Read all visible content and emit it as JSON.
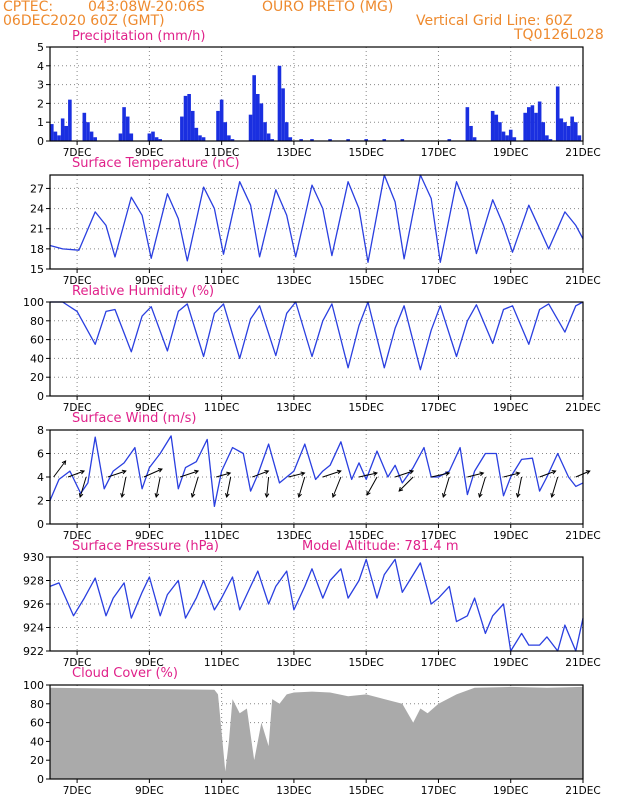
{
  "header": {
    "source": "CPTEC:",
    "coords": "043:08W-20:06S",
    "location": "OURO PRETO (MG)",
    "run": "06DEC2020 60Z (GMT)",
    "grid_note": "Vertical Grid Line: 60Z",
    "code": "TQ0126L028"
  },
  "colors": {
    "line": "#2a3fe0",
    "bar": "#1a2fe0",
    "title": "#e0218a",
    "header": "#ee8a2e",
    "cloud": "#aaaaaa",
    "wind_arrow": "#000000"
  },
  "x_axis": {
    "day_ticks": [
      7,
      9,
      11,
      13,
      15,
      17,
      19,
      21
    ],
    "day_labels": [
      "7DEC",
      "9DEC",
      "11DEC",
      "13DEC",
      "15DEC",
      "17DEC",
      "19DEC",
      "21DEC"
    ],
    "range_days": [
      6.25,
      21.0
    ]
  },
  "chart_data": [
    {
      "type": "bar",
      "title": "Precipitation (mm/h)",
      "ylim": [
        0,
        5
      ],
      "yticks": [
        0,
        1,
        2,
        3,
        4,
        5
      ],
      "series": [
        {
          "x": [
            6.3,
            6.4,
            6.5,
            6.6,
            6.7,
            6.8,
            7.2,
            7.3,
            7.4,
            7.5,
            8.2,
            8.3,
            8.4,
            8.5,
            9.0,
            9.1,
            9.2,
            9.3,
            9.9,
            10.0,
            10.1,
            10.2,
            10.3,
            10.4,
            10.5,
            10.9,
            11.0,
            11.1,
            11.2,
            11.3,
            11.8,
            11.9,
            12.0,
            12.1,
            12.2,
            12.3,
            12.4,
            12.6,
            12.7,
            12.8,
            12.9,
            13.2,
            13.5,
            14.0,
            14.5,
            15.0,
            15.5,
            16.0,
            17.3,
            17.8,
            17.9,
            18.0,
            18.5,
            18.6,
            18.7,
            18.8,
            18.9,
            19.0,
            19.1,
            19.4,
            19.5,
            19.6,
            19.7,
            19.8,
            19.9,
            20.0,
            20.1,
            20.3,
            20.4,
            20.5,
            20.6,
            20.7,
            20.8,
            20.9
          ],
          "values": [
            0.9,
            0.5,
            0.3,
            1.2,
            0.8,
            2.2,
            1.5,
            1.0,
            0.5,
            0.2,
            0.4,
            1.8,
            1.3,
            0.4,
            0.4,
            0.5,
            0.2,
            0.1,
            1.3,
            2.4,
            2.5,
            1.6,
            0.7,
            0.3,
            0.2,
            1.6,
            2.2,
            1.0,
            0.3,
            0.1,
            1.4,
            3.5,
            2.5,
            2.0,
            1.0,
            0.4,
            0.1,
            4.0,
            2.8,
            1.0,
            0.2,
            0.1,
            0.1,
            0.1,
            0.1,
            0.1,
            0.1,
            0.1,
            0.1,
            1.8,
            0.8,
            0.2,
            1.6,
            1.4,
            1.0,
            0.5,
            0.3,
            0.6,
            0.2,
            1.5,
            1.8,
            1.9,
            1.5,
            2.1,
            1.0,
            0.3,
            0.1,
            2.9,
            1.2,
            1.0,
            0.8,
            1.3,
            1.0,
            0.3
          ]
        }
      ],
      "xlabel": "",
      "ylabel": "",
      "grid": true
    },
    {
      "type": "line",
      "title": "Surface Temperature (nC)",
      "ylim": [
        15,
        29
      ],
      "yticks": [
        15,
        18,
        21,
        24,
        27
      ],
      "series": [
        {
          "x": [
            6.25,
            6.6,
            7.05,
            7.5,
            7.8,
            8.05,
            8.5,
            8.8,
            9.05,
            9.5,
            9.8,
            10.05,
            10.5,
            10.8,
            11.05,
            11.5,
            11.8,
            12.05,
            12.5,
            12.8,
            13.05,
            13.5,
            13.8,
            14.05,
            14.5,
            14.8,
            15.05,
            15.5,
            15.8,
            16.05,
            16.5,
            16.8,
            17.05,
            17.5,
            17.8,
            18.05,
            18.5,
            18.8,
            19.05,
            19.5,
            19.8,
            20.05,
            20.5,
            20.8,
            21.0
          ],
          "values": [
            18.5,
            18.0,
            17.8,
            23.5,
            21.5,
            16.8,
            25.7,
            23.0,
            16.6,
            26.2,
            22.5,
            16.2,
            27.2,
            24.0,
            17.2,
            28.0,
            24.5,
            16.8,
            26.8,
            23.0,
            16.8,
            27.5,
            24.0,
            17.0,
            28.0,
            24.0,
            16.0,
            29.0,
            25.0,
            16.5,
            29.0,
            25.5,
            16.0,
            28.0,
            24.0,
            17.3,
            25.3,
            21.5,
            17.5,
            24.5,
            21.0,
            18.0,
            23.5,
            21.5,
            19.5
          ]
        }
      ],
      "xlabel": "",
      "ylabel": "",
      "grid": true
    },
    {
      "type": "line",
      "title": "Relative Humidity (%)",
      "ylim": [
        0,
        100
      ],
      "yticks": [
        0,
        20,
        40,
        60,
        80,
        100
      ],
      "series": [
        {
          "x": [
            6.25,
            6.6,
            7.0,
            7.5,
            7.8,
            8.05,
            8.5,
            8.8,
            9.05,
            9.5,
            9.8,
            10.05,
            10.5,
            10.8,
            11.05,
            11.5,
            11.8,
            12.05,
            12.5,
            12.8,
            13.05,
            13.5,
            13.8,
            14.05,
            14.5,
            14.8,
            15.05,
            15.5,
            15.8,
            16.05,
            16.5,
            16.8,
            17.05,
            17.5,
            17.8,
            18.05,
            18.5,
            18.8,
            19.05,
            19.5,
            19.8,
            20.05,
            20.5,
            20.8,
            21.0
          ],
          "values": [
            100,
            100,
            90,
            55,
            90,
            92,
            47,
            85,
            95,
            48,
            90,
            98,
            42,
            88,
            98,
            40,
            82,
            96,
            43,
            88,
            100,
            42,
            80,
            98,
            30,
            75,
            100,
            30,
            72,
            96,
            28,
            70,
            96,
            42,
            80,
            97,
            56,
            92,
            96,
            55,
            92,
            98,
            68,
            96,
            100
          ]
        }
      ],
      "xlabel": "",
      "ylabel": "",
      "grid": true
    },
    {
      "type": "line",
      "title": "Surface Wind (m/s)",
      "ylim": [
        0,
        8
      ],
      "yticks": [
        0,
        2,
        4,
        6,
        8
      ],
      "series": [
        {
          "x": [
            6.25,
            6.5,
            6.8,
            7.1,
            7.3,
            7.5,
            7.75,
            8.0,
            8.3,
            8.6,
            8.8,
            9.0,
            9.3,
            9.6,
            9.8,
            10.0,
            10.3,
            10.6,
            10.8,
            11.0,
            11.3,
            11.6,
            11.8,
            12.0,
            12.3,
            12.6,
            12.8,
            13.0,
            13.3,
            13.6,
            13.8,
            14.0,
            14.3,
            14.6,
            14.8,
            15.0,
            15.3,
            15.6,
            15.8,
            16.0,
            16.3,
            16.6,
            16.8,
            17.0,
            17.3,
            17.6,
            17.8,
            18.0,
            18.3,
            18.6,
            18.8,
            19.0,
            19.3,
            19.6,
            19.8,
            20.0,
            20.3,
            20.6,
            20.8,
            21.0
          ],
          "values": [
            2.0,
            3.8,
            4.5,
            2.6,
            3.5,
            7.4,
            3.0,
            4.5,
            5.2,
            6.5,
            3.0,
            4.8,
            6.0,
            7.5,
            3.0,
            4.8,
            5.3,
            7.2,
            1.5,
            4.5,
            6.5,
            6.0,
            2.8,
            4.2,
            6.8,
            3.5,
            4.0,
            4.5,
            6.8,
            3.8,
            4.5,
            5.0,
            7.0,
            3.8,
            5.2,
            3.8,
            6.2,
            4.0,
            5.0,
            3.5,
            4.8,
            6.5,
            4.0,
            4.0,
            4.5,
            6.5,
            2.5,
            4.5,
            6.0,
            6.0,
            2.4,
            4.0,
            5.5,
            5.6,
            2.8,
            4.0,
            6.0,
            4.0,
            3.2,
            3.5
          ]
        }
      ],
      "wind_arrows": [
        {
          "x": 6.35,
          "u": 0.6,
          "v": 0.8
        },
        {
          "x": 6.75,
          "u": 0.8,
          "v": 0.3
        },
        {
          "x": 7.25,
          "u": -0.3,
          "v": -1.0
        },
        {
          "x": 7.85,
          "u": 0.9,
          "v": 0.3
        },
        {
          "x": 8.35,
          "u": -0.2,
          "v": -1.0
        },
        {
          "x": 8.85,
          "u": 0.9,
          "v": 0.4
        },
        {
          "x": 9.3,
          "u": -0.2,
          "v": -1.0
        },
        {
          "x": 9.85,
          "u": 0.9,
          "v": 0.3
        },
        {
          "x": 10.35,
          "u": -0.3,
          "v": -1.0
        },
        {
          "x": 10.85,
          "u": 0.7,
          "v": 0.2
        },
        {
          "x": 11.25,
          "u": -0.2,
          "v": -1.0
        },
        {
          "x": 11.85,
          "u": 0.8,
          "v": 0.3
        },
        {
          "x": 12.3,
          "u": -0.1,
          "v": -1.0
        },
        {
          "x": 12.85,
          "u": 0.8,
          "v": 0.2
        },
        {
          "x": 13.3,
          "u": -0.3,
          "v": -1.0
        },
        {
          "x": 13.8,
          "u": 0.9,
          "v": 0.3
        },
        {
          "x": 14.3,
          "u": -0.4,
          "v": -1.0
        },
        {
          "x": 14.8,
          "u": 0.9,
          "v": 0.2
        },
        {
          "x": 15.3,
          "u": -0.5,
          "v": -0.9
        },
        {
          "x": 15.8,
          "u": 0.9,
          "v": 0.3
        },
        {
          "x": 16.3,
          "u": -0.7,
          "v": -0.7
        },
        {
          "x": 16.8,
          "u": 0.9,
          "v": 0.2
        },
        {
          "x": 17.3,
          "u": -0.3,
          "v": -1.0
        },
        {
          "x": 17.8,
          "u": 0.8,
          "v": 0.2
        },
        {
          "x": 18.3,
          "u": -0.3,
          "v": -1.0
        },
        {
          "x": 18.8,
          "u": 0.8,
          "v": 0.2
        },
        {
          "x": 19.3,
          "u": -0.2,
          "v": -1.0
        },
        {
          "x": 19.8,
          "u": 0.8,
          "v": 0.3
        },
        {
          "x": 20.3,
          "u": -0.3,
          "v": -1.0
        },
        {
          "x": 20.8,
          "u": 0.7,
          "v": 0.3
        }
      ],
      "xlabel": "",
      "ylabel": "",
      "grid": true
    },
    {
      "type": "line",
      "title": "Surface Pressure (hPa)",
      "annotation": "Model Altitude: 781.4 m",
      "ylim": [
        922,
        930
      ],
      "yticks": [
        922,
        924,
        926,
        928,
        930
      ],
      "series": [
        {
          "x": [
            6.25,
            6.5,
            6.9,
            7.2,
            7.5,
            7.8,
            8.0,
            8.3,
            8.5,
            8.8,
            9.0,
            9.3,
            9.5,
            9.8,
            10.0,
            10.3,
            10.5,
            10.8,
            11.0,
            11.3,
            11.5,
            11.8,
            12.0,
            12.3,
            12.5,
            12.8,
            13.0,
            13.3,
            13.5,
            13.8,
            14.0,
            14.3,
            14.5,
            14.8,
            15.0,
            15.3,
            15.5,
            15.8,
            16.0,
            16.3,
            16.5,
            16.8,
            17.0,
            17.3,
            17.5,
            17.8,
            18.0,
            18.3,
            18.5,
            18.8,
            19.0,
            19.3,
            19.5,
            19.8,
            20.0,
            20.3,
            20.5,
            20.8,
            21.0
          ],
          "values": [
            927.5,
            927.8,
            925.0,
            926.5,
            928.2,
            925.0,
            926.5,
            927.8,
            924.8,
            927.0,
            928.3,
            925.0,
            926.8,
            928.0,
            924.8,
            926.5,
            928.0,
            925.5,
            926.5,
            928.3,
            925.5,
            927.5,
            928.8,
            926.0,
            927.5,
            928.8,
            925.5,
            927.5,
            929.0,
            926.5,
            928.0,
            929.0,
            926.5,
            928.0,
            929.8,
            926.5,
            928.5,
            929.8,
            927.0,
            928.5,
            929.5,
            926.0,
            926.5,
            927.5,
            924.5,
            925.0,
            926.5,
            923.5,
            925.0,
            926.0,
            922.0,
            923.5,
            922.5,
            922.5,
            923.2,
            922.0,
            924.2,
            922.0,
            924.8
          ]
        }
      ],
      "xlabel": "",
      "ylabel": "",
      "grid": true
    },
    {
      "type": "area",
      "title": "Cloud Cover (%)",
      "ylim": [
        0,
        100
      ],
      "yticks": [
        0,
        20,
        40,
        60,
        80,
        100
      ],
      "series": [
        {
          "x": [
            6.25,
            10.8,
            10.9,
            11.0,
            11.1,
            11.2,
            11.3,
            11.5,
            11.7,
            11.9,
            12.1,
            12.3,
            12.4,
            12.6,
            12.8,
            13.0,
            13.5,
            14.0,
            14.5,
            15.0,
            15.5,
            16.0,
            16.3,
            16.5,
            16.7,
            17.0,
            17.5,
            18.0,
            19.0,
            20.0,
            21.0
          ],
          "values": [
            97,
            95,
            90,
            50,
            8,
            40,
            85,
            70,
            75,
            20,
            60,
            35,
            85,
            80,
            90,
            92,
            93,
            92,
            88,
            90,
            85,
            80,
            60,
            75,
            70,
            80,
            90,
            97,
            98,
            97,
            98
          ]
        }
      ],
      "xlabel": "",
      "ylabel": "",
      "grid": true
    }
  ]
}
